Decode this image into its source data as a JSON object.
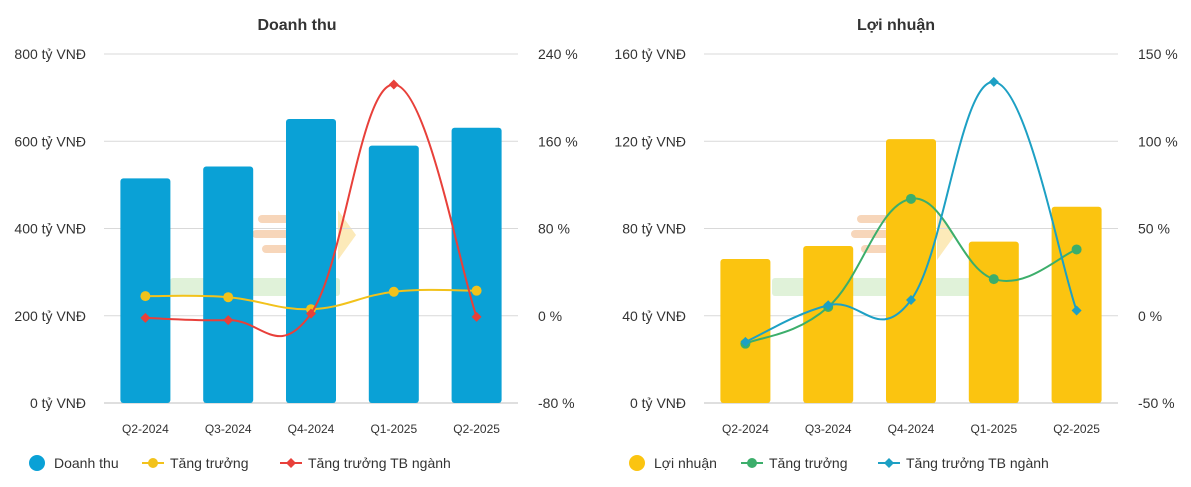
{
  "chart_data": [
    {
      "type": "bar",
      "title": "Doanh thu",
      "categories": [
        "Q2-2024",
        "Q3-2024",
        "Q4-2024",
        "Q1-2025",
        "Q2-2025"
      ],
      "y_left": {
        "ylim": [
          0,
          800
        ],
        "ticks": [
          0,
          200,
          400,
          600,
          800
        ],
        "tick_labels": [
          "0 tỷ VNĐ",
          "200 tỷ VNĐ",
          "400 tỷ VNĐ",
          "600 tỷ VNĐ",
          "800 tỷ VNĐ"
        ]
      },
      "y_right": {
        "ylim": [
          -80,
          240
        ],
        "ticks": [
          -80,
          0,
          80,
          160,
          240
        ],
        "tick_labels": [
          "-80 %",
          "0 %",
          "80 %",
          "160 %",
          "240 %"
        ]
      },
      "series": [
        {
          "name": "Doanh thu",
          "kind": "bar",
          "axis": "left",
          "color": "#0aa1d6",
          "values": [
            515,
            542,
            651,
            590,
            631
          ]
        },
        {
          "name": "Tăng trưởng",
          "kind": "line",
          "marker": "circle",
          "axis": "right",
          "color": "#f2c21b",
          "values": [
            18,
            17,
            6,
            22,
            23
          ]
        },
        {
          "name": "Tăng trưởng TB ngành",
          "kind": "line",
          "marker": "diamond",
          "axis": "right",
          "color": "#e8403a",
          "values": [
            -2,
            -4,
            2,
            212,
            -1
          ]
        }
      ],
      "grid": true,
      "legend": "bottom"
    },
    {
      "type": "bar",
      "title": "Lợi nhuận",
      "categories": [
        "Q2-2024",
        "Q3-2024",
        "Q4-2024",
        "Q1-2025",
        "Q2-2025"
      ],
      "y_left": {
        "ylim": [
          0,
          160
        ],
        "ticks": [
          0,
          40,
          80,
          120,
          160
        ],
        "tick_labels": [
          "0 tỷ VNĐ",
          "40 tỷ VNĐ",
          "80 tỷ VNĐ",
          "120 tỷ VNĐ",
          "160 tỷ VNĐ"
        ]
      },
      "y_right": {
        "ylim": [
          -50,
          150
        ],
        "ticks": [
          -50,
          0,
          50,
          100,
          150
        ],
        "tick_labels": [
          "-50 %",
          "0 %",
          "50 %",
          "100 %",
          "150 %"
        ]
      },
      "series": [
        {
          "name": "Lợi nhuận",
          "kind": "bar",
          "axis": "left",
          "color": "#fbc410",
          "values": [
            66,
            72,
            121,
            74,
            90
          ]
        },
        {
          "name": "Tăng trưởng",
          "kind": "line",
          "marker": "circle",
          "axis": "right",
          "color": "#3cae6b",
          "values": [
            -16,
            5,
            67,
            21,
            38
          ]
        },
        {
          "name": "Tăng trưởng TB ngành",
          "kind": "line",
          "marker": "diamond",
          "axis": "right",
          "color": "#1da0c4",
          "values": [
            -15,
            6,
            9,
            134,
            3
          ]
        }
      ],
      "grid": true,
      "legend": "bottom"
    }
  ]
}
